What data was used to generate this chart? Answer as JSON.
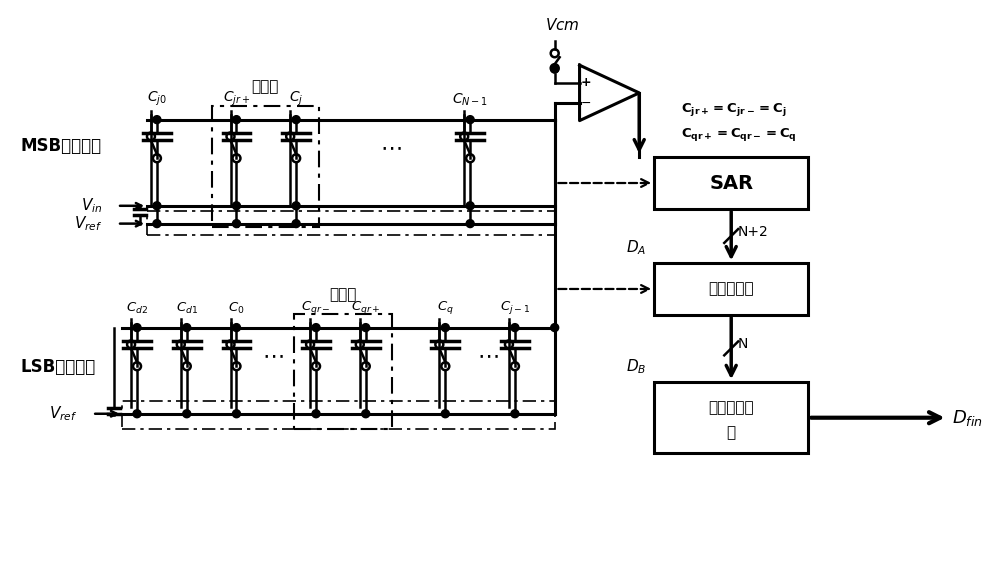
{
  "background": "#ffffff",
  "msb_label": "MSB段电容：",
  "lsb_label": "LSB段电容：",
  "redundant_label": "冗余位",
  "redundant_proc_label": "冗余位处理",
  "cal_label_1": "电容失调校",
  "cal_label_2": "准",
  "sar_label": "SAR",
  "vcm_label": "Vcm",
  "eq_line1": "$\\mathbf{C_{jr+} = C_{jr-} = C_j}$",
  "eq_line2": "$\\mathbf{C_{qr+} = C_{qr-} = C_q}$",
  "msb_cap_labels": [
    "$C_{j0}$",
    "$C_{jr+}$",
    "$C_j$",
    "$C_{N-1}$"
  ],
  "lsb_cap_labels": [
    "$C_{d2}$",
    "$C_{d1}$",
    "$C_0$",
    "$C_{qr-}$",
    "$C_{qr+}$",
    "$C_q$",
    "$C_{j-1}$"
  ],
  "da_label": "$D_A$",
  "db_label": "$D_B$",
  "n2_label": "N+2",
  "n_label": "N",
  "dfin_label": "$D_{fin}$",
  "vin_label": "$V_{in}$",
  "vref_label": "$V_{ref}$"
}
